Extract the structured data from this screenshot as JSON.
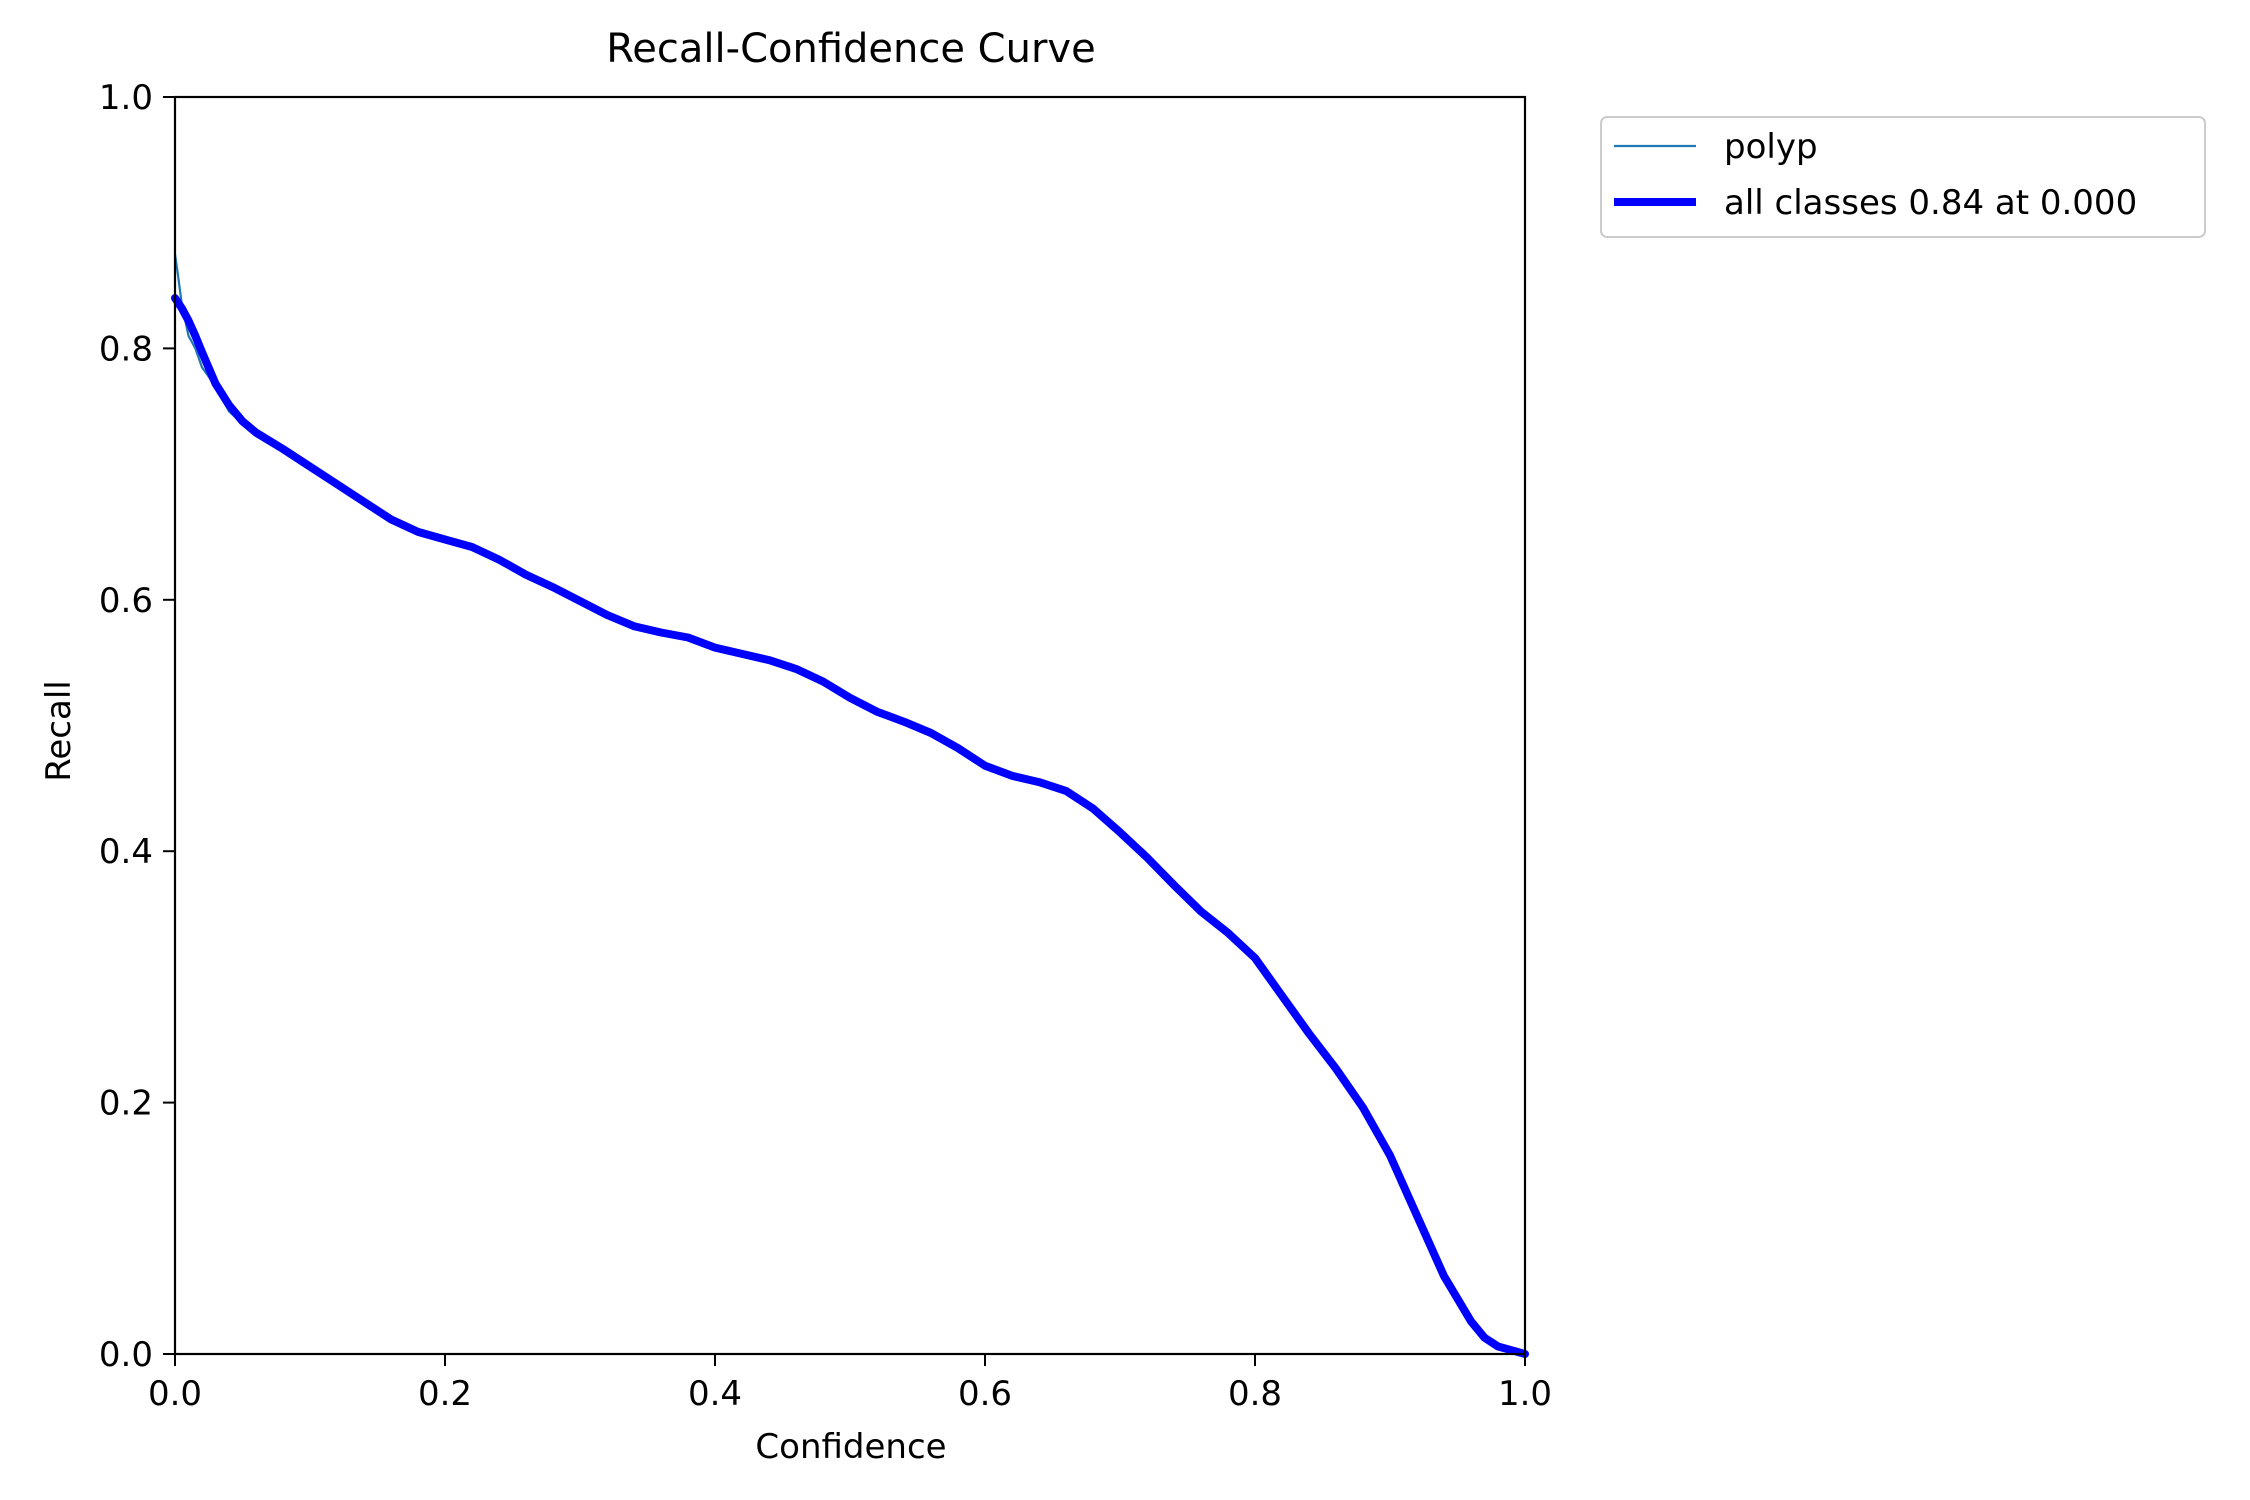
{
  "chart_data": {
    "type": "line",
    "title": "Recall-Confidence Curve",
    "xlabel": "Confidence",
    "ylabel": "Recall",
    "xlim": [
      0.0,
      1.0
    ],
    "ylim": [
      0.0,
      1.0
    ],
    "xticks": [
      0.0,
      0.2,
      0.4,
      0.6,
      0.8,
      1.0
    ],
    "yticks": [
      0.0,
      0.2,
      0.4,
      0.6,
      0.8,
      1.0
    ],
    "xtick_labels": [
      "0.0",
      "0.2",
      "0.4",
      "0.6",
      "0.8",
      "1.0"
    ],
    "ytick_labels": [
      "0.0",
      "0.2",
      "0.4",
      "0.6",
      "0.8",
      "1.0"
    ],
    "grid": false,
    "legend_position": "outside-top-right",
    "series": [
      {
        "name": "polyp",
        "color": "#1f77b4",
        "style": "thin",
        "points": [
          [
            0.0,
            0.875
          ],
          [
            0.002,
            0.86
          ],
          [
            0.005,
            0.835
          ],
          [
            0.01,
            0.81
          ],
          [
            0.015,
            0.8
          ],
          [
            0.02,
            0.785
          ],
          [
            0.03,
            0.77
          ],
          [
            0.04,
            0.75
          ],
          [
            0.05,
            0.74
          ],
          [
            0.06,
            0.733
          ],
          [
            0.08,
            0.72
          ],
          [
            0.1,
            0.705
          ],
          [
            0.12,
            0.692
          ],
          [
            0.14,
            0.68
          ],
          [
            0.16,
            0.665
          ],
          [
            0.18,
            0.655
          ],
          [
            0.2,
            0.648
          ],
          [
            0.22,
            0.642
          ],
          [
            0.24,
            0.632
          ],
          [
            0.26,
            0.622
          ],
          [
            0.28,
            0.61
          ],
          [
            0.3,
            0.6
          ],
          [
            0.32,
            0.588
          ],
          [
            0.34,
            0.58
          ],
          [
            0.36,
            0.575
          ],
          [
            0.38,
            0.57
          ],
          [
            0.4,
            0.562
          ],
          [
            0.42,
            0.557
          ],
          [
            0.44,
            0.552
          ],
          [
            0.46,
            0.545
          ],
          [
            0.48,
            0.535
          ],
          [
            0.5,
            0.522
          ],
          [
            0.52,
            0.51
          ],
          [
            0.54,
            0.503
          ],
          [
            0.56,
            0.495
          ],
          [
            0.58,
            0.482
          ],
          [
            0.6,
            0.468
          ],
          [
            0.62,
            0.46
          ],
          [
            0.64,
            0.455
          ],
          [
            0.66,
            0.448
          ],
          [
            0.68,
            0.435
          ],
          [
            0.7,
            0.415
          ],
          [
            0.72,
            0.395
          ],
          [
            0.74,
            0.375
          ],
          [
            0.76,
            0.352
          ],
          [
            0.78,
            0.335
          ],
          [
            0.8,
            0.315
          ],
          [
            0.82,
            0.285
          ],
          [
            0.84,
            0.255
          ],
          [
            0.86,
            0.227
          ],
          [
            0.88,
            0.197
          ],
          [
            0.9,
            0.16
          ],
          [
            0.92,
            0.112
          ],
          [
            0.94,
            0.062
          ],
          [
            0.96,
            0.025
          ],
          [
            0.97,
            0.012
          ],
          [
            0.98,
            0.005
          ],
          [
            0.99,
            0.002
          ],
          [
            1.0,
            0.0
          ]
        ]
      },
      {
        "name": "all classes 0.84 at 0.000",
        "color": "#0000ff",
        "style": "thick",
        "points": [
          [
            0.0,
            0.84
          ],
          [
            0.005,
            0.832
          ],
          [
            0.01,
            0.822
          ],
          [
            0.015,
            0.81
          ],
          [
            0.02,
            0.797
          ],
          [
            0.03,
            0.772
          ],
          [
            0.04,
            0.755
          ],
          [
            0.05,
            0.742
          ],
          [
            0.06,
            0.733
          ],
          [
            0.08,
            0.72
          ],
          [
            0.1,
            0.706
          ],
          [
            0.12,
            0.692
          ],
          [
            0.14,
            0.678
          ],
          [
            0.16,
            0.664
          ],
          [
            0.18,
            0.654
          ],
          [
            0.2,
            0.648
          ],
          [
            0.22,
            0.642
          ],
          [
            0.24,
            0.632
          ],
          [
            0.26,
            0.62
          ],
          [
            0.28,
            0.61
          ],
          [
            0.3,
            0.599
          ],
          [
            0.32,
            0.588
          ],
          [
            0.34,
            0.579
          ],
          [
            0.36,
            0.574
          ],
          [
            0.38,
            0.57
          ],
          [
            0.4,
            0.562
          ],
          [
            0.42,
            0.557
          ],
          [
            0.44,
            0.552
          ],
          [
            0.46,
            0.545
          ],
          [
            0.48,
            0.535
          ],
          [
            0.5,
            0.522
          ],
          [
            0.52,
            0.511
          ],
          [
            0.54,
            0.503
          ],
          [
            0.56,
            0.494
          ],
          [
            0.58,
            0.482
          ],
          [
            0.6,
            0.468
          ],
          [
            0.62,
            0.46
          ],
          [
            0.64,
            0.455
          ],
          [
            0.66,
            0.448
          ],
          [
            0.68,
            0.434
          ],
          [
            0.7,
            0.415
          ],
          [
            0.72,
            0.395
          ],
          [
            0.74,
            0.373
          ],
          [
            0.76,
            0.352
          ],
          [
            0.78,
            0.335
          ],
          [
            0.8,
            0.315
          ],
          [
            0.82,
            0.285
          ],
          [
            0.84,
            0.255
          ],
          [
            0.86,
            0.227
          ],
          [
            0.88,
            0.196
          ],
          [
            0.9,
            0.158
          ],
          [
            0.92,
            0.11
          ],
          [
            0.94,
            0.062
          ],
          [
            0.96,
            0.026
          ],
          [
            0.97,
            0.013
          ],
          [
            0.98,
            0.006
          ],
          [
            0.99,
            0.003
          ],
          [
            1.0,
            0.0
          ]
        ]
      }
    ]
  }
}
